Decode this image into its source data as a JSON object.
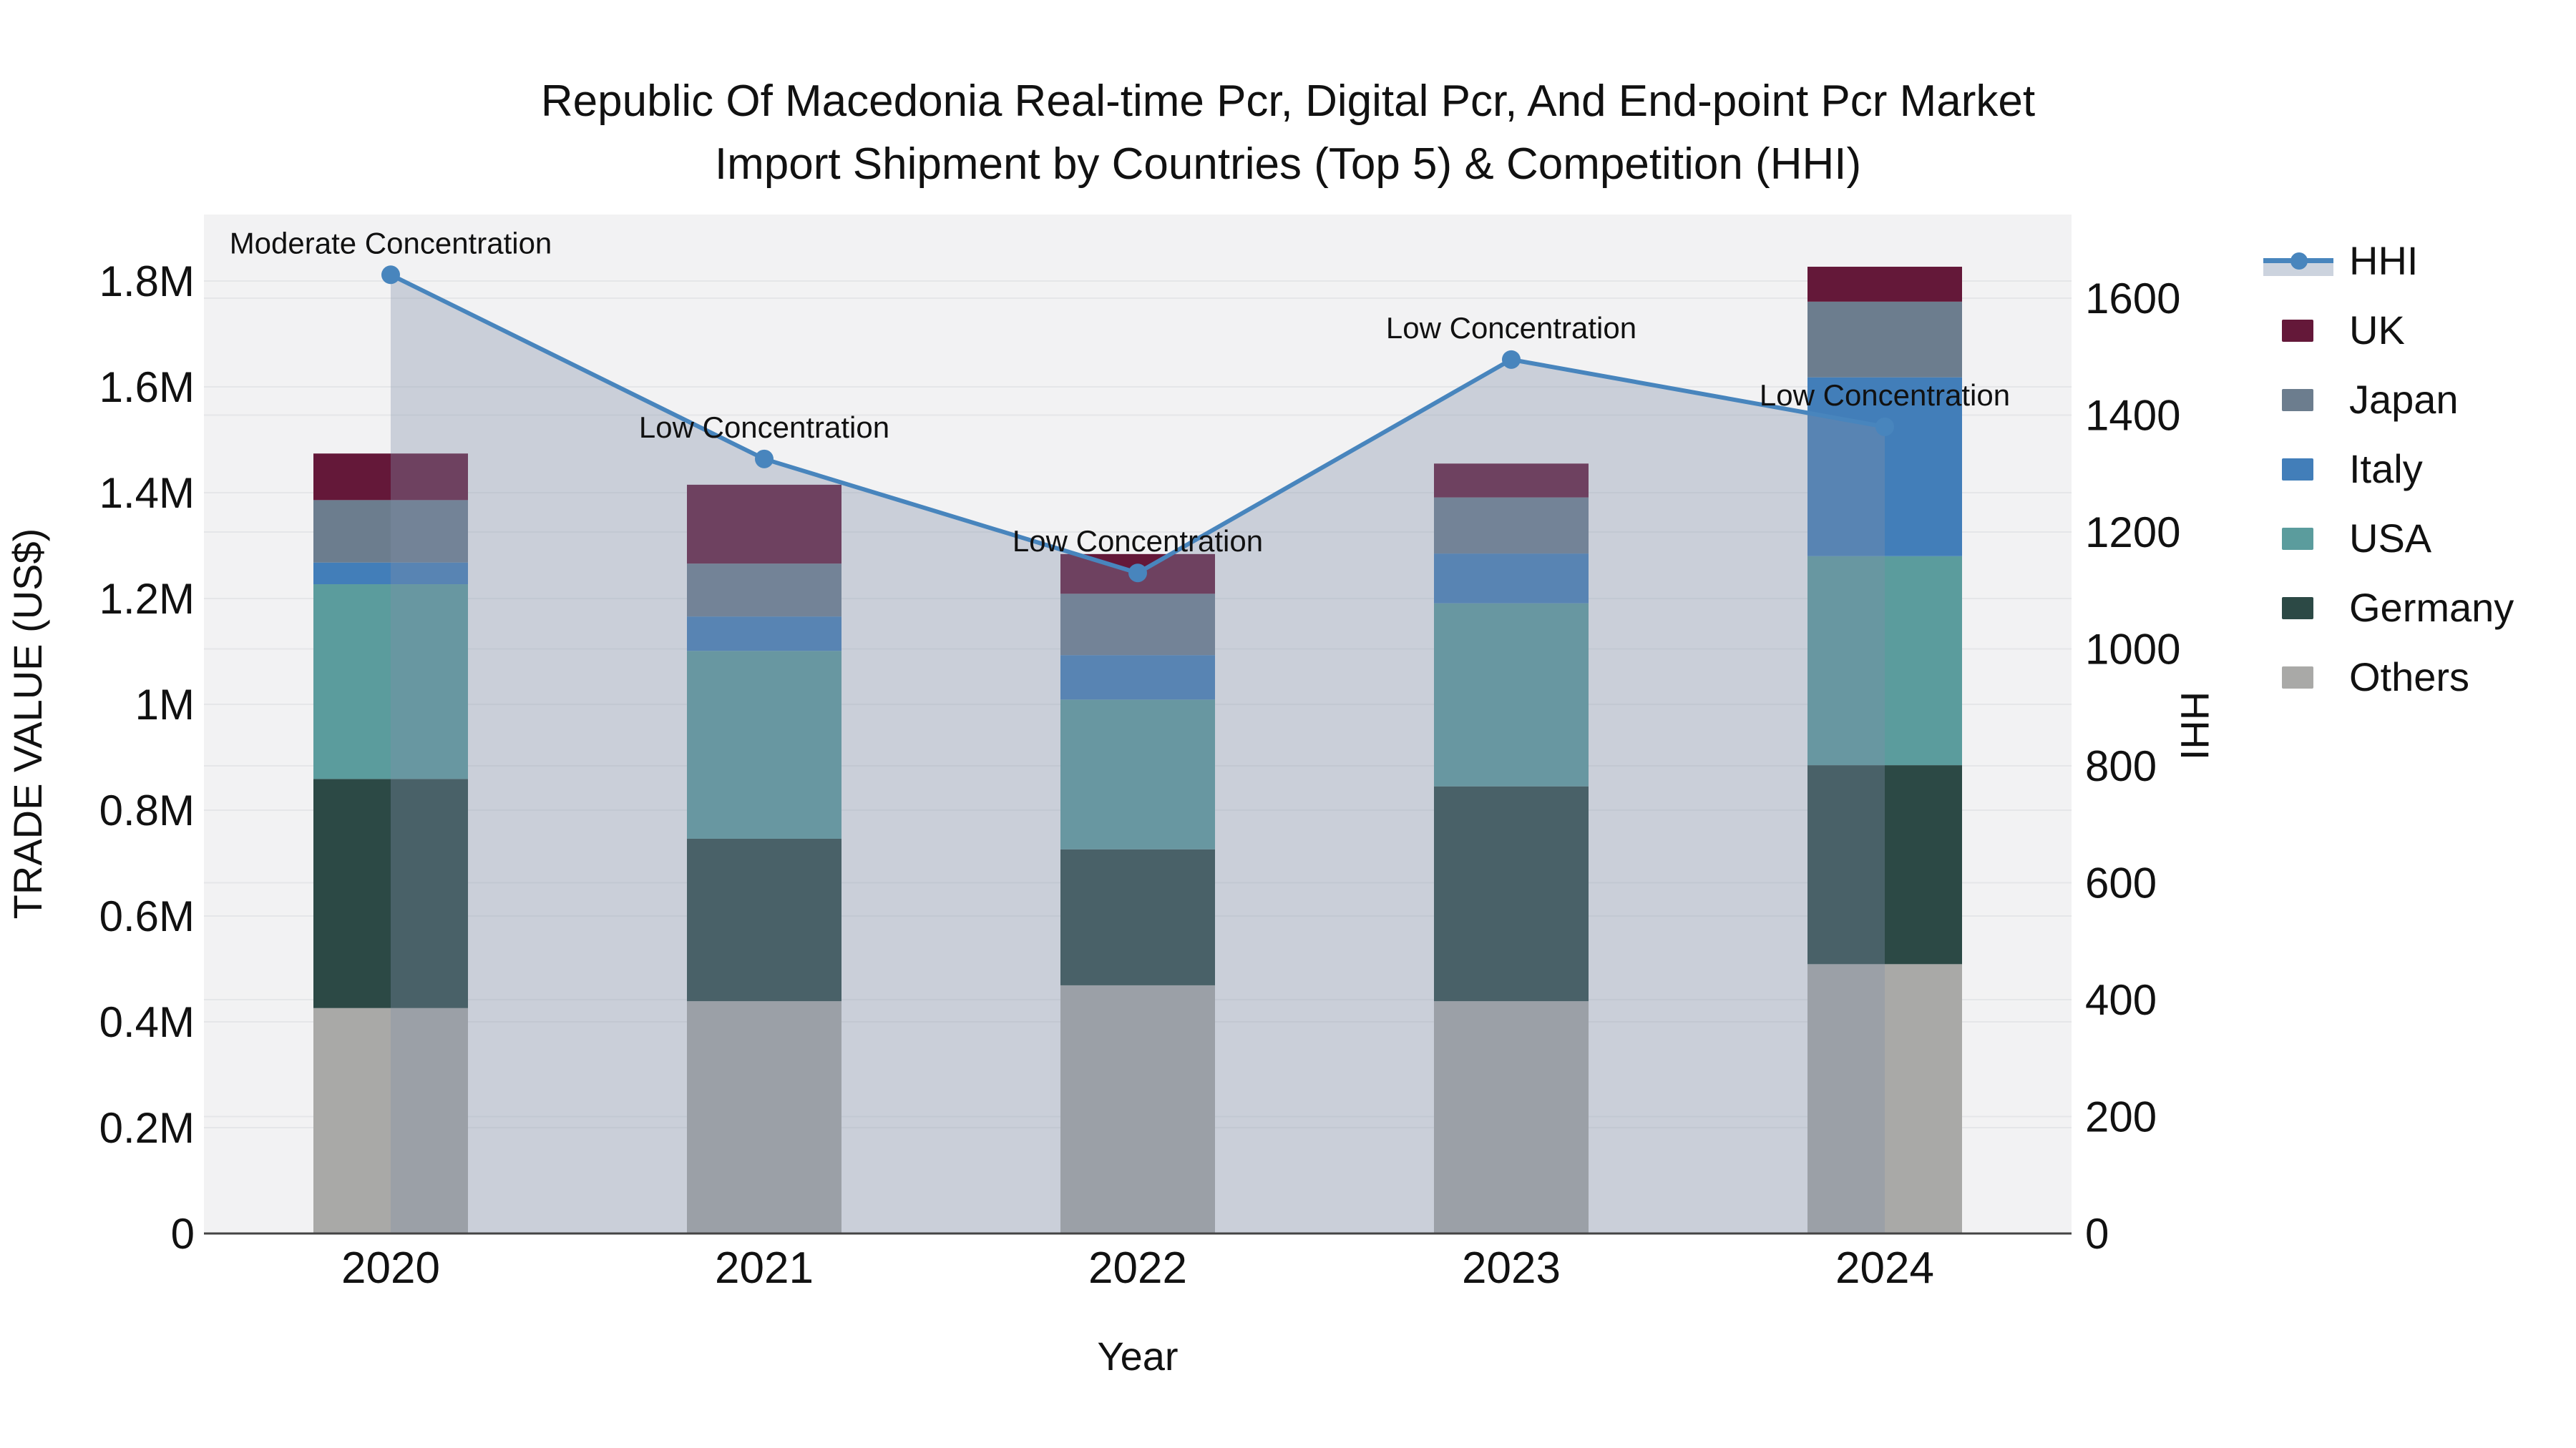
{
  "title_line1": "Republic Of Macedonia Real-time Pcr, Digital Pcr, And End-point Pcr Market",
  "title_line2": "Import Shipment by Countries (Top 5) & Competition (HHI)",
  "chart_data": {
    "type": "bar",
    "subtype": "stacked-bars-with-dual-axis-line",
    "title": "Republic Of Macedonia Real-time Pcr, Digital Pcr, And End-point Pcr Market Import Shipment by Countries (Top 5) & Competition (HHI)",
    "xlabel": "Year",
    "ylabel_left": "TRADE VALUE (US$)",
    "ylabel_right": "HHI",
    "categories": [
      "2020",
      "2021",
      "2022",
      "2023",
      "2024"
    ],
    "stack_order_bottom_to_top": [
      "Others",
      "Germany",
      "USA",
      "Italy",
      "Japan",
      "UK"
    ],
    "series": [
      {
        "name": "UK",
        "color": "#641839",
        "values_musd": [
          0.088,
          0.149,
          0.075,
          0.064,
          0.066
        ]
      },
      {
        "name": "Japan",
        "color": "#6C7D8E",
        "values_musd": [
          0.118,
          0.1,
          0.116,
          0.106,
          0.143
        ]
      },
      {
        "name": "Italy",
        "color": "#427EB9",
        "values_musd": [
          0.041,
          0.065,
          0.084,
          0.094,
          0.338
        ]
      },
      {
        "name": "USA",
        "color": "#5B9C9D",
        "values_musd": [
          0.368,
          0.355,
          0.283,
          0.346,
          0.395
        ]
      },
      {
        "name": "Germany",
        "color": "#2C4945",
        "values_musd": [
          0.433,
          0.307,
          0.257,
          0.406,
          0.376
        ]
      },
      {
        "name": "Others",
        "color": "#A9A9A7",
        "values_musd": [
          0.426,
          0.439,
          0.469,
          0.439,
          0.509
        ]
      }
    ],
    "bar_totals_musd": [
      1.474,
      1.415,
      1.284,
      1.455,
      1.827
    ],
    "hhi_line": {
      "name": "HHI",
      "color": "#4885BD",
      "fill_color": "rgba(130,143,168,0.35)",
      "values": [
        1640,
        1325,
        1130,
        1495,
        1380
      ]
    },
    "annotations": [
      "Moderate Concentration",
      "Low Concentration",
      "Low Concentration",
      "Low Concentration",
      "Low Concentration"
    ],
    "y_left_ticks": {
      "values": [
        0,
        0.2,
        0.4,
        0.6,
        0.8,
        1.0,
        1.2,
        1.4,
        1.6,
        1.8
      ],
      "labels": [
        "0",
        "0.2M",
        "0.4M",
        "0.6M",
        "0.8M",
        "1M",
        "1.2M",
        "1.4M",
        "1.6M",
        "1.8M"
      ]
    },
    "y_right_ticks": {
      "values": [
        0,
        200,
        400,
        600,
        800,
        1000,
        1200,
        1400,
        1600
      ],
      "labels": [
        "0",
        "200",
        "400",
        "600",
        "800",
        "1000",
        "1200",
        "1400",
        "1600"
      ]
    },
    "ylim_left_musd": [
      0,
      1.93
    ],
    "ylim_right": [
      0,
      1748
    ],
    "grid": true,
    "legend_position": "right",
    "colors": {
      "plot_bg": "#F2F2F3",
      "grid": "#E5E6E8",
      "axis_line": "#444444",
      "text": "#111111"
    }
  },
  "legend": {
    "items": [
      {
        "label": "HHI",
        "type": "line",
        "color": "#4885BD"
      },
      {
        "label": "UK",
        "type": "square",
        "color": "#641839"
      },
      {
        "label": "Japan",
        "type": "square",
        "color": "#6C7D8E"
      },
      {
        "label": "Italy",
        "type": "square",
        "color": "#427EB9"
      },
      {
        "label": "USA",
        "type": "square",
        "color": "#5B9C9D"
      },
      {
        "label": "Germany",
        "type": "square",
        "color": "#2C4945"
      },
      {
        "label": "Others",
        "type": "square",
        "color": "#A9A9A7"
      }
    ]
  }
}
